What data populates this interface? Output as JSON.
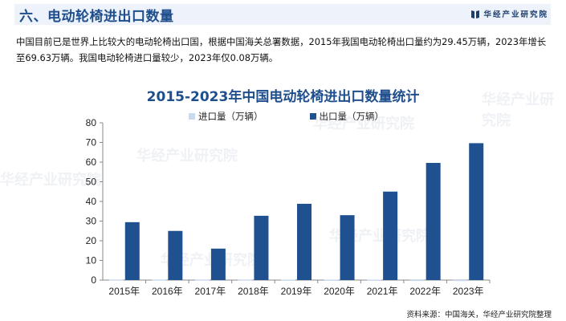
{
  "header": {
    "title": "六、电动轮椅进出口数量",
    "brand": "华经产业研究院"
  },
  "intro": {
    "text": "中国目前已是世界上比较大的电动轮椅出口国，根据中国海关总署数据，2015年我国电动轮椅出口量约为29.45万辆，2023年增长至69.63万辆。我国电动轮椅进口量较少，2023年仅0.08万辆。"
  },
  "chart_title": "2015-2023年中国电动轮椅进出口数量统计",
  "legend": {
    "import": "进口量（万辆）",
    "export": "出口量（万辆）"
  },
  "source": "资料来源：中国海关，华经产业研究院整理",
  "colors": {
    "import": "#c9daf0",
    "export": "#1f5090",
    "title": "#1f4e8c"
  },
  "chart_data": {
    "type": "bar",
    "title": "2015-2023年中国电动轮椅进出口数量统计",
    "xlabel": "",
    "ylabel": "",
    "categories": [
      "2015年",
      "2016年",
      "2017年",
      "2018年",
      "2019年",
      "2020年",
      "2021年",
      "2022年",
      "2023年"
    ],
    "series": [
      {
        "name": "进口量（万辆）",
        "values": [
          0.3,
          0.3,
          0.3,
          0.3,
          0.2,
          0.2,
          0.2,
          0.1,
          0.08
        ]
      },
      {
        "name": "出口量（万辆）",
        "values": [
          29.45,
          25.0,
          16.0,
          32.7,
          38.8,
          33.0,
          45.0,
          59.6,
          69.63
        ]
      }
    ],
    "ylim": [
      0,
      80
    ],
    "yticks": [
      0,
      10,
      20,
      30,
      40,
      50,
      60,
      70,
      80
    ],
    "grid": false,
    "legend_position": "top"
  }
}
